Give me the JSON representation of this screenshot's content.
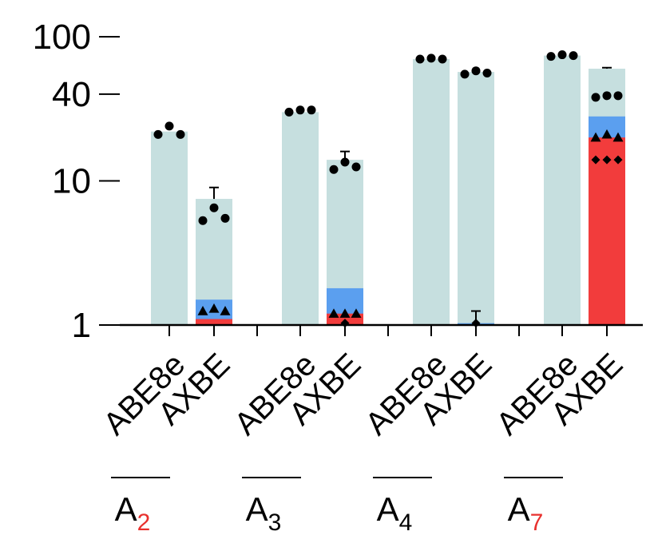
{
  "chart_data": {
    "type": "bar",
    "y_scale": "log",
    "ylim": [
      1,
      100
    ],
    "y_ticks": [
      "1",
      "10",
      "40",
      "100"
    ],
    "groups": [
      {
        "label_main": "A",
        "label_sub": "2",
        "label_sub_color": "#e8312e",
        "bars": [
          {
            "label": "ABE8e",
            "total": 22,
            "red": 0,
            "blue": 0,
            "err": 0,
            "circles": [
              21,
              24,
              21
            ],
            "triangles": [],
            "diamonds": []
          },
          {
            "label": "AXBE",
            "total": 7.5,
            "red": 1.1,
            "blue": 1.5,
            "err": 9,
            "circles": [
              5.3,
              6.5,
              5.5
            ],
            "triangles": [
              1.25,
              1.3,
              1.25
            ],
            "diamonds": []
          }
        ]
      },
      {
        "label_main": "A",
        "label_sub": "3",
        "label_sub_color": "#000000",
        "bars": [
          {
            "label": "ABE8e",
            "total": 30,
            "red": 0,
            "blue": 0,
            "err": 0,
            "circles": [
              30,
              31,
              31
            ],
            "triangles": [],
            "diamonds": []
          },
          {
            "label": "AXBE",
            "total": 14,
            "red": 1.2,
            "blue": 1.8,
            "err": 16,
            "circles": [
              12,
              13.5,
              12.5
            ],
            "triangles": [
              1.2,
              1.2,
              1.2
            ],
            "diamonds": [
              1.03
            ]
          }
        ]
      },
      {
        "label_main": "A",
        "label_sub": "4",
        "label_sub_color": "#000000",
        "bars": [
          {
            "label": "ABE8e",
            "total": 70,
            "red": 0,
            "blue": 0,
            "err": 0,
            "circles": [
              70,
              71,
              70
            ],
            "triangles": [],
            "diamonds": []
          },
          {
            "label": "AXBE",
            "total": 57,
            "red": 0,
            "blue": 1.03,
            "err": 1.25,
            "circles": [
              55,
              58,
              56
            ],
            "triangles": [],
            "diamonds": [
              1.03
            ]
          }
        ]
      },
      {
        "label_main": "A",
        "label_sub": "7",
        "label_sub_color": "#e8312e",
        "bars": [
          {
            "label": "ABE8e",
            "total": 74,
            "red": 0,
            "blue": 0,
            "err": 0,
            "circles": [
              73,
              75,
              74
            ],
            "triangles": [],
            "diamonds": []
          },
          {
            "label": "AXBE",
            "total": 60,
            "red": 20,
            "blue": 28,
            "err": 61,
            "circles": [
              38,
              39,
              39
            ],
            "triangles": [
              20,
              21,
              20
            ],
            "diamonds": [
              14,
              14,
              14
            ]
          }
        ]
      }
    ],
    "colors": {
      "total": "#c6dfdf",
      "blue": "#5b9fef",
      "red": "#f23c3c"
    }
  }
}
